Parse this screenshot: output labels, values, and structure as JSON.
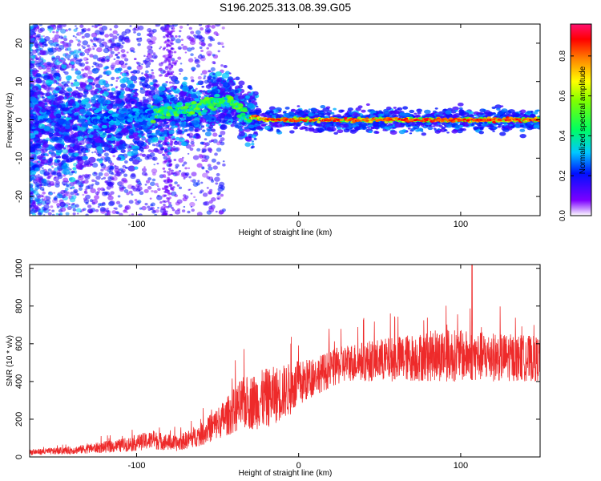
{
  "title": "S196.2025.313.08.39.G05",
  "colors": {
    "snr_line": "#ee2a2a",
    "axis": "#000000"
  },
  "chart_data": [
    {
      "type": "heatmap",
      "xlabel": "Height of straight line (km)",
      "ylabel": "Frequency (Hz)",
      "xlim": [
        -166,
        149
      ],
      "ylim": [
        -25,
        25
      ],
      "xticks": [
        -100,
        0,
        100
      ],
      "xtick_labels": [
        "-100",
        "0",
        "100"
      ],
      "yticks": [
        -20,
        -10,
        0,
        10,
        20
      ],
      "ytick_labels": [
        "-20",
        "-10",
        "0",
        "10",
        "20"
      ],
      "colorbar": {
        "label": "Normalized spectral amplitude",
        "range": [
          0,
          0.96
        ],
        "ticks": [
          0,
          0.2,
          0.4,
          0.6,
          0.8
        ],
        "tick_labels": [
          "0.0",
          "0.2",
          "0.4",
          "0.6",
          "0.8"
        ],
        "colormap": "rainbow"
      },
      "ridge": [
        {
          "x": -130,
          "f": 0
        },
        {
          "x": -110,
          "f": 0.5
        },
        {
          "x": -90,
          "f": 1.5
        },
        {
          "x": -75,
          "f": 2.5
        },
        {
          "x": -60,
          "f": 3.5
        },
        {
          "x": -50,
          "f": 4.5
        },
        {
          "x": -42,
          "f": 5.5
        },
        {
          "x": -36,
          "f": 3
        },
        {
          "x": -32,
          "f": 1
        },
        {
          "x": -20,
          "f": 0
        },
        {
          "x": 0,
          "f": 0
        },
        {
          "x": 50,
          "f": 0
        },
        {
          "x": 100,
          "f": 0
        },
        {
          "x": 149,
          "f": 0
        }
      ],
      "grid": false
    },
    {
      "type": "line",
      "xlabel": "Height of straight line (km)",
      "ylabel": "SNR (10 * v/v)",
      "xlim": [
        -166,
        149
      ],
      "ylim": [
        0,
        1020
      ],
      "xticks": [
        -100,
        0,
        100
      ],
      "xtick_labels": [
        "-100",
        "0",
        "100"
      ],
      "yticks": [
        0,
        200,
        400,
        600,
        800,
        1000
      ],
      "ytick_labels": [
        "0",
        "200",
        "400",
        "600",
        "800",
        "1000"
      ],
      "envelope": [
        {
          "x": -166,
          "mean": 25,
          "amp": 15
        },
        {
          "x": -140,
          "mean": 35,
          "amp": 20
        },
        {
          "x": -110,
          "mean": 60,
          "amp": 35
        },
        {
          "x": -90,
          "mean": 90,
          "amp": 50
        },
        {
          "x": -75,
          "mean": 70,
          "amp": 40
        },
        {
          "x": -60,
          "mean": 120,
          "amp": 60
        },
        {
          "x": -45,
          "mean": 210,
          "amp": 100
        },
        {
          "x": -35,
          "mean": 280,
          "amp": 140
        },
        {
          "x": -20,
          "mean": 310,
          "amp": 160
        },
        {
          "x": -5,
          "mean": 360,
          "amp": 140
        },
        {
          "x": 10,
          "mean": 430,
          "amp": 100
        },
        {
          "x": 30,
          "mean": 500,
          "amp": 100
        },
        {
          "x": 60,
          "mean": 520,
          "amp": 120
        },
        {
          "x": 90,
          "mean": 540,
          "amp": 140
        },
        {
          "x": 120,
          "mean": 530,
          "amp": 130
        },
        {
          "x": 149,
          "mean": 520,
          "amp": 120
        }
      ],
      "peak": {
        "x": 107,
        "y": 1020
      },
      "grid": false
    }
  ]
}
